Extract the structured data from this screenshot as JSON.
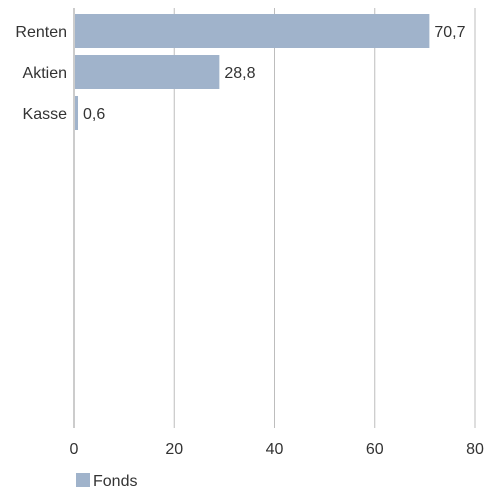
{
  "chart_data": {
    "type": "bar",
    "orientation": "horizontal",
    "categories": [
      "Renten",
      "Aktien",
      "Kasse"
    ],
    "series": [
      {
        "name": "Fonds",
        "values": [
          70.7,
          28.8,
          0.6
        ],
        "value_labels": [
          "70,7",
          "28,8",
          "0,6"
        ],
        "color": "#a0b3cb"
      }
    ],
    "title": "",
    "xlabel": "",
    "ylabel": "",
    "xlim": [
      0,
      80
    ],
    "xticks": [
      0,
      20,
      40,
      60,
      80
    ],
    "xtick_labels": [
      "0",
      "20",
      "40",
      "60",
      "80"
    ],
    "grid": "vertical",
    "legend": "bottom-left"
  },
  "colors": {
    "bar": "#a0b3cb",
    "grid": "#bdbdbd",
    "axis": "#9a9a9a",
    "text": "#333333"
  }
}
